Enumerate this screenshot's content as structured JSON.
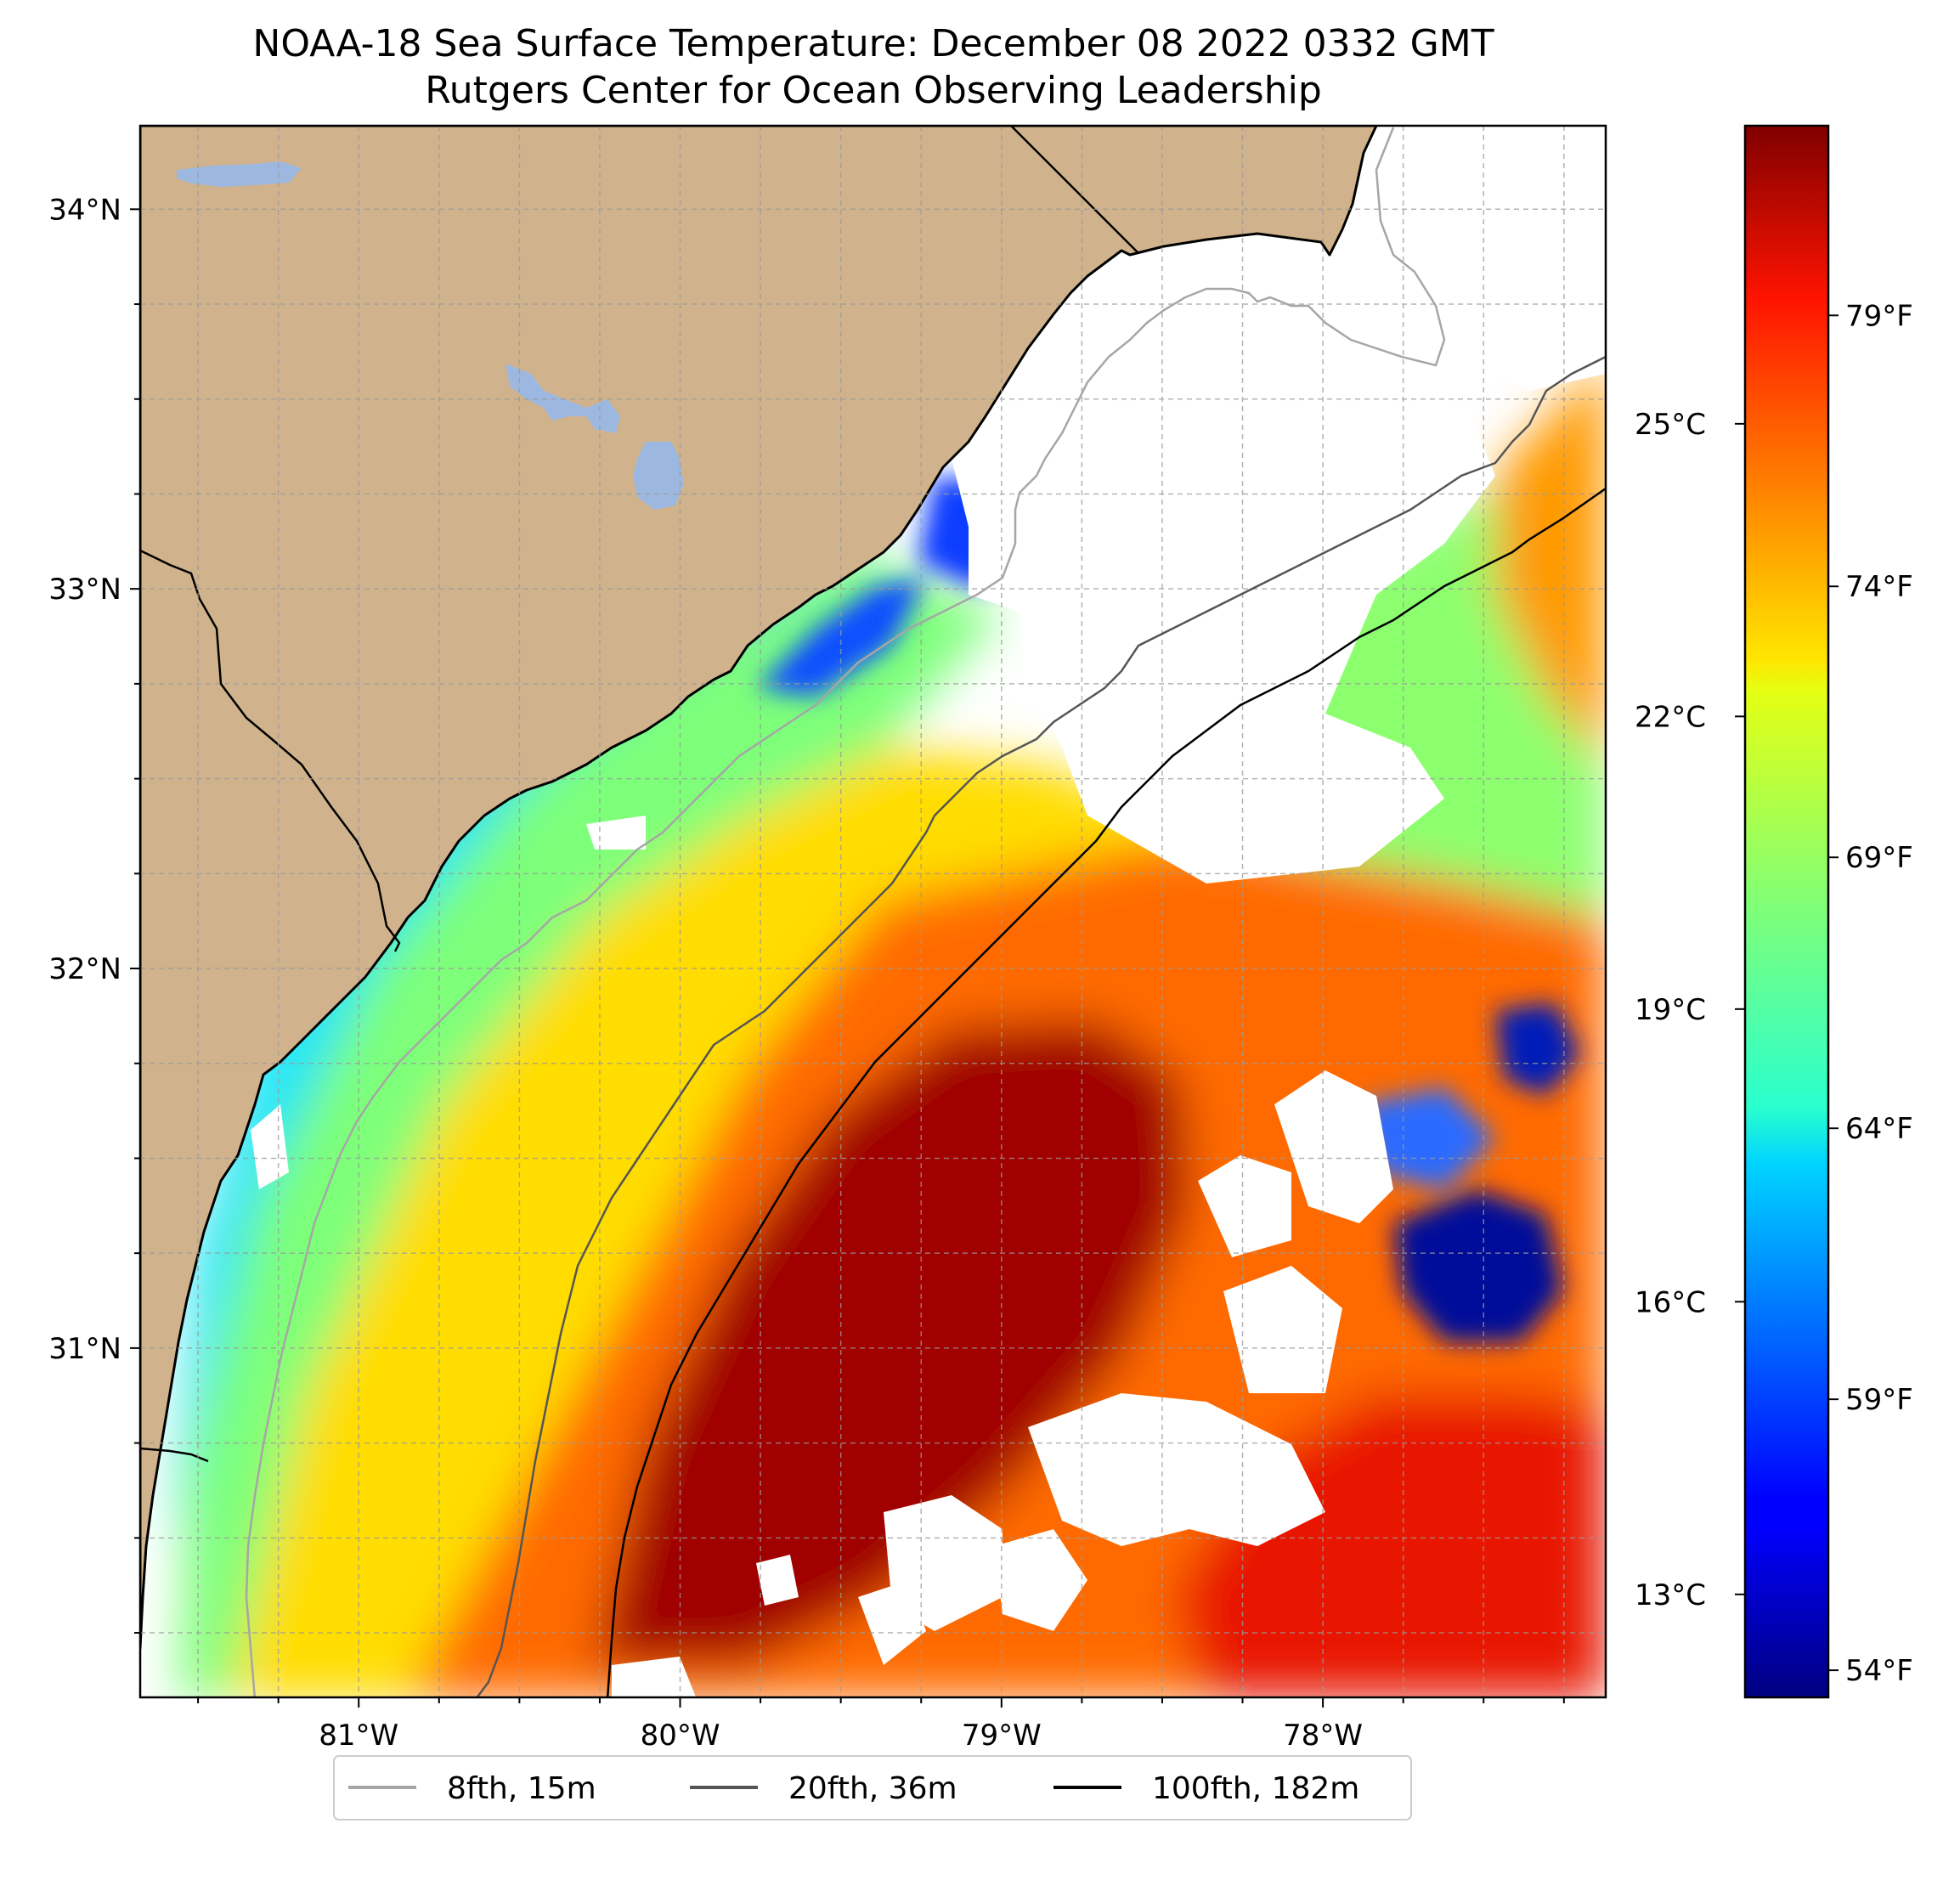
{
  "title": {
    "line1": "NOAA-18 Sea Surface Temperature: December 08 2022 0332 GMT",
    "line2": "Rutgers Center for Ocean Observing Leadership"
  },
  "map": {
    "lon_range": [
      -81.68,
      -77.12
    ],
    "lat_range": [
      30.08,
      34.22
    ],
    "land_color": "#d0b38c",
    "lake_color": "#9db8e0",
    "cloud_mask_color": "#ffffff",
    "gridlines": true,
    "lon_ticks": [
      {
        "value": -81,
        "label": "81°W"
      },
      {
        "value": -80,
        "label": "80°W"
      },
      {
        "value": -79,
        "label": "79°W"
      },
      {
        "value": -78,
        "label": "78°W"
      }
    ],
    "lat_ticks": [
      {
        "value": 34,
        "label": "34°N"
      },
      {
        "value": 33,
        "label": "33°N"
      },
      {
        "value": 32,
        "label": "32°N"
      },
      {
        "value": 31,
        "label": "31°N"
      }
    ]
  },
  "colorbar": {
    "colormap": "jet",
    "range_f": [
      53.5,
      82.5
    ],
    "celsius_ticks": [
      {
        "value": 25,
        "label": "25°C"
      },
      {
        "value": 22,
        "label": "22°C"
      },
      {
        "value": 19,
        "label": "19°C"
      },
      {
        "value": 16,
        "label": "16°C"
      },
      {
        "value": 13,
        "label": "13°C"
      }
    ],
    "fahrenheit_ticks": [
      {
        "value": 79,
        "label": "79°F"
      },
      {
        "value": 74,
        "label": "74°F"
      },
      {
        "value": 69,
        "label": "69°F"
      },
      {
        "value": 64,
        "label": "64°F"
      },
      {
        "value": 59,
        "label": "59°F"
      },
      {
        "value": 54,
        "label": "54°F"
      }
    ]
  },
  "legend": {
    "placement": "bottom-center",
    "items": [
      {
        "label": "8fth, 15m",
        "color": "#a6a6a6"
      },
      {
        "label": "20fth, 36m",
        "color": "#555555"
      },
      {
        "label": "100fth, 182m",
        "color": "#000000"
      }
    ]
  }
}
